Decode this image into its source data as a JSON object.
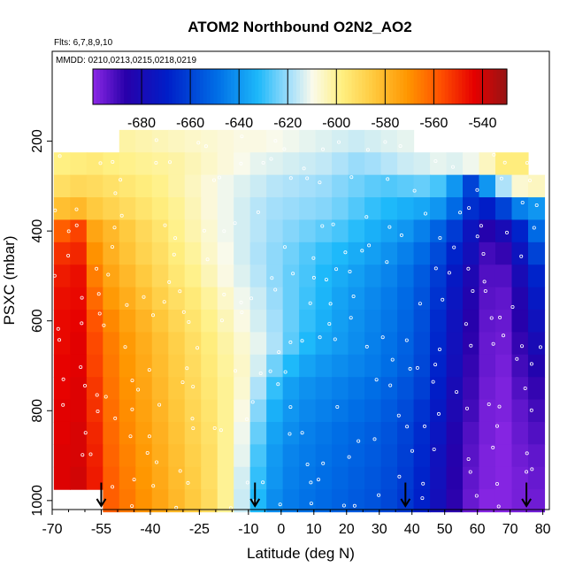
{
  "chart_data": {
    "type": "heatmap",
    "title": "ATOM2 Northbound O2N2_AO2",
    "flights_note": "Flts: 6,7,8,9,10",
    "dates_note": "MMDD: 0210,0213,0215,0218,0219",
    "xlabel": "Latitude (deg N)",
    "ylabel": "PSXC (mbar)",
    "xlim": [
      -70,
      82
    ],
    "ylim": [
      1020,
      0
    ],
    "x_ticks": [
      "-70",
      "-55",
      "-40",
      "-25",
      "-10",
      "0",
      "10",
      "20",
      "30",
      "40",
      "50",
      "60",
      "70",
      "80"
    ],
    "x_tick_values": [
      -70,
      -55,
      -40,
      -25,
      -10,
      0,
      10,
      20,
      30,
      40,
      50,
      60,
      70,
      80
    ],
    "y_ticks": [
      "200",
      "400",
      "600",
      "800",
      "1000"
    ],
    "y_tick_values": [
      200,
      400,
      600,
      800,
      1000
    ],
    "colorbar": {
      "min": -700,
      "max": -530,
      "ticks": [
        "-680",
        "-660",
        "-640",
        "-620",
        "-600",
        "-580",
        "-560",
        "-540"
      ],
      "tick_values": [
        -680,
        -660,
        -640,
        -620,
        -600,
        -580,
        -560,
        -540
      ]
    },
    "lat_bins": [
      -67,
      -62,
      -57,
      -52,
      -47,
      -42,
      -37,
      -32,
      -27,
      -22,
      -17,
      -12,
      -7,
      -2,
      3,
      8,
      13,
      18,
      23,
      28,
      33,
      38,
      43,
      48,
      53,
      58,
      63,
      68,
      73,
      78
    ],
    "pressure_bins": [
      200,
      250,
      300,
      350,
      400,
      450,
      500,
      550,
      600,
      650,
      700,
      750,
      800,
      850,
      900,
      950,
      1000
    ],
    "values": [
      [
        null,
        null,
        null,
        null,
        -602,
        -603,
        -604,
        -605,
        -606,
        -607,
        -608,
        -609,
        -609,
        -610,
        -611,
        -612,
        -613,
        -614,
        -615,
        -614,
        -613,
        -612,
        null,
        null,
        null,
        null,
        null,
        null,
        null,
        null
      ],
      [
        -598,
        -597,
        -596,
        -598,
        -599,
        -600,
        -601,
        -602,
        -604,
        -606,
        -608,
        -610,
        -612,
        -613,
        -614,
        -615,
        -616,
        -618,
        -620,
        -619,
        -617,
        -615,
        -614,
        -612,
        -613,
        -611,
        -605,
        -597,
        -597,
        null
      ],
      [
        -592,
        -590,
        -591,
        -593,
        -595,
        -597,
        -599,
        -602,
        -605,
        -608,
        -611,
        -613,
        -615,
        -617,
        -618,
        -619,
        -620,
        -622,
        -624,
        -626,
        -627,
        -626,
        -625,
        -628,
        -640,
        -660,
        -640,
        -618,
        -607,
        -605
      ],
      [
        -582,
        -580,
        -585,
        -588,
        -591,
        -594,
        -597,
        -600,
        -604,
        -608,
        -611,
        -614,
        -617,
        -619,
        -620,
        -621,
        -622,
        -624,
        -627,
        -630,
        -632,
        -634,
        -636,
        -640,
        -650,
        -665,
        -670,
        -660,
        -645,
        -640
      ],
      [
        -560,
        -555,
        -575,
        -580,
        -585,
        -590,
        -594,
        -599,
        -603,
        -607,
        -611,
        -614,
        -617,
        -620,
        -622,
        -624,
        -626,
        -628,
        -631,
        -634,
        -637,
        -640,
        -645,
        -652,
        -662,
        -675,
        -685,
        -680,
        -668,
        -650
      ],
      [
        -552,
        -550,
        -570,
        -578,
        -583,
        -588,
        -592,
        -597,
        -601,
        -606,
        -610,
        -614,
        -618,
        -621,
        -624,
        -627,
        -630,
        -632,
        -635,
        -638,
        -641,
        -645,
        -650,
        -658,
        -668,
        -678,
        -690,
        -688,
        -675,
        -660
      ],
      [
        -548,
        -546,
        -566,
        -575,
        -580,
        -585,
        -590,
        -595,
        -599,
        -604,
        -609,
        -613,
        -617,
        -621,
        -625,
        -628,
        -632,
        -635,
        -638,
        -641,
        -644,
        -648,
        -654,
        -662,
        -672,
        -682,
        -692,
        -692,
        -680,
        -668
      ],
      [
        -546,
        -545,
        -562,
        -572,
        -577,
        -582,
        -587,
        -592,
        -596,
        -601,
        -606,
        -611,
        -615,
        -620,
        -625,
        -629,
        -633,
        -637,
        -640,
        -643,
        -646,
        -650,
        -656,
        -664,
        -674,
        -684,
        -693,
        -694,
        -684,
        -672
      ],
      [
        -545,
        -544,
        -558,
        -568,
        -574,
        -579,
        -584,
        -589,
        -594,
        -599,
        -604,
        -609,
        -614,
        -619,
        -625,
        -630,
        -634,
        -638,
        -641,
        -644,
        -647,
        -651,
        -657,
        -666,
        -676,
        -686,
        -694,
        -695,
        -686,
        -676
      ],
      [
        -545,
        -543,
        -556,
        -566,
        -572,
        -577,
        -582,
        -587,
        -592,
        -597,
        -602,
        -607,
        -612,
        -618,
        -626,
        -632,
        -636,
        -639,
        -642,
        -645,
        -648,
        -652,
        -658,
        -667,
        -677,
        -687,
        -695,
        -696,
        -688,
        -680
      ],
      [
        -544,
        -543,
        -555,
        -565,
        -571,
        -576,
        -581,
        -586,
        -591,
        -596,
        -601,
        -606,
        -614,
        -624,
        -632,
        -637,
        -640,
        -642,
        -644,
        -646,
        -649,
        -653,
        -659,
        -668,
        -678,
        -688,
        -695,
        -697,
        -690,
        -684
      ],
      [
        -544,
        -542,
        -553,
        -564,
        -570,
        -575,
        -580,
        -585,
        -590,
        -595,
        -600,
        -607,
        -618,
        -630,
        -638,
        -641,
        -643,
        -645,
        -647,
        -649,
        -652,
        -656,
        -661,
        -670,
        -680,
        -689,
        -696,
        -698,
        -692,
        -688
      ],
      [
        -543,
        -542,
        -552,
        -563,
        -569,
        -574,
        -579,
        -584,
        -589,
        -594,
        -600,
        -609,
        -622,
        -634,
        -640,
        -643,
        -645,
        -647,
        -649,
        -651,
        -654,
        -658,
        -664,
        -672,
        -682,
        -690,
        -697,
        -698,
        -694,
        -690
      ],
      [
        -543,
        -541,
        -550,
        -562,
        -568,
        -573,
        -578,
        -583,
        -588,
        -593,
        -600,
        -611,
        -625,
        -637,
        -642,
        -645,
        -647,
        -649,
        -651,
        -653,
        -656,
        -660,
        -666,
        -674,
        -684,
        -692,
        -697,
        -699,
        -695,
        -692
      ],
      [
        -542,
        -541,
        -549,
        -561,
        -567,
        -572,
        -577,
        -582,
        -587,
        -592,
        -600,
        -612,
        -628,
        -639,
        -644,
        -646,
        -648,
        -650,
        -652,
        -654,
        -657,
        -661,
        -667,
        -676,
        -685,
        -693,
        -698,
        -699,
        -696,
        -694
      ],
      [
        -542,
        -540,
        -548,
        -560,
        -566,
        -571,
        -576,
        -581,
        -586,
        -592,
        -600,
        -614,
        -630,
        -640,
        -645,
        -647,
        -649,
        -651,
        -653,
        -655,
        -658,
        -662,
        -668,
        -677,
        -686,
        -694,
        -698,
        -699,
        -697,
        -695
      ],
      [
        null,
        null,
        null,
        -560,
        -565,
        -570,
        -575,
        -580,
        -585,
        -591,
        -600,
        -615,
        -632,
        -642,
        -646,
        -648,
        -650,
        -652,
        -654,
        -656,
        -659,
        -663,
        -669,
        -678,
        -687,
        -695,
        -699,
        -699,
        -697,
        -696
      ]
    ],
    "arrows_lat": [
      -55,
      -8,
      38,
      75
    ]
  }
}
